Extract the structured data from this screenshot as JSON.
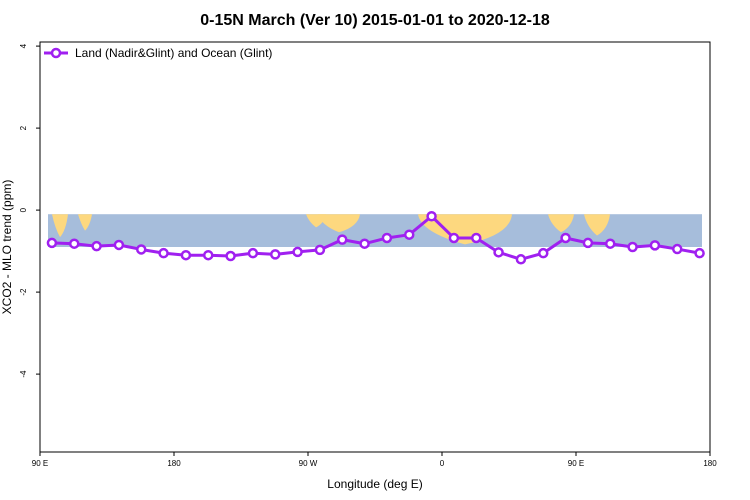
{
  "chart_data": {
    "type": "line",
    "title": "0-15N March (Ver 10)   2015-01-01 to 2020-12-18",
    "xlabel": "Longitude (deg E)",
    "ylabel": "XCO2 - MLO trend (ppm)",
    "x_ticks": [
      {
        "value": 90,
        "label": "90 E"
      },
      {
        "value": 180,
        "label": "180"
      },
      {
        "value": 270,
        "label": "90 W"
      },
      {
        "value": 360,
        "label": "0"
      },
      {
        "value": 450,
        "label": "90 E"
      },
      {
        "value": 540,
        "label": "180"
      }
    ],
    "y_ticks": [
      {
        "value": 4,
        "label": "4"
      },
      {
        "value": 2,
        "label": "2"
      },
      {
        "value": 0,
        "label": "0"
      },
      {
        "value": -2,
        "label": "-2"
      },
      {
        "value": -4,
        "label": "-4"
      }
    ],
    "xlim": [
      90,
      540
    ],
    "ylim": [
      -5.9,
      4.1
    ],
    "grid": false,
    "legend_position": "top-left",
    "background_band": {
      "y_top": -0.1,
      "y_bottom": -0.9,
      "ocean_color": "#a6bddb",
      "land_color": "#fdd87f"
    },
    "series": [
      {
        "name": "Land (Nadir&Glint) and Ocean (Glint)",
        "color": "#a020f0",
        "x": [
          98,
          113,
          128,
          143,
          158,
          173,
          188,
          203,
          218,
          233,
          248,
          263,
          278,
          293,
          308,
          323,
          338,
          353,
          368,
          383,
          398,
          413,
          428,
          443,
          458,
          473,
          488,
          503,
          518,
          533
        ],
        "values": [
          -0.8,
          -0.82,
          -0.88,
          -0.85,
          -0.96,
          -1.05,
          -1.1,
          -1.1,
          -1.12,
          -1.05,
          -1.08,
          -1.02,
          -0.97,
          -0.72,
          -0.82,
          -0.68,
          -0.6,
          -0.15,
          -0.68,
          -0.68,
          -1.03,
          -1.2,
          -1.05,
          -0.68,
          -0.8,
          -0.82,
          -0.9,
          -0.86,
          -0.95,
          -1.05
        ]
      }
    ]
  }
}
